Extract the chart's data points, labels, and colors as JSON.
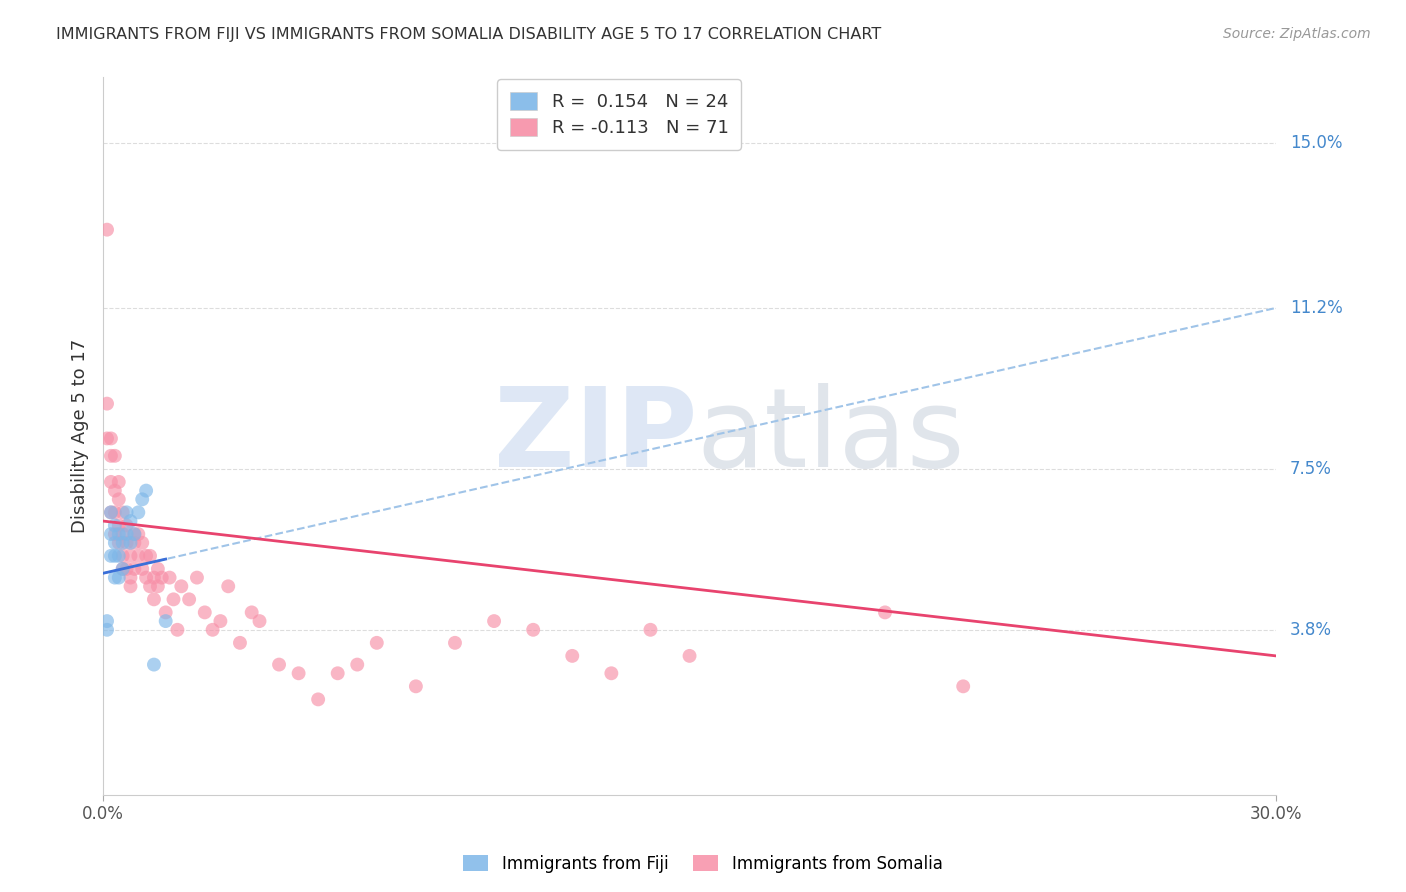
{
  "title": "IMMIGRANTS FROM FIJI VS IMMIGRANTS FROM SOMALIA DISABILITY AGE 5 TO 17 CORRELATION CHART",
  "source": "Source: ZipAtlas.com",
  "ylabel": "Disability Age 5 to 17",
  "xlim": [
    0.0,
    0.3
  ],
  "ylim": [
    0.0,
    0.165
  ],
  "ytick_values": [
    0.038,
    0.075,
    0.112,
    0.15
  ],
  "ytick_labels": [
    "3.8%",
    "7.5%",
    "11.2%",
    "15.0%"
  ],
  "grid_color": "#dddddd",
  "fiji_color": "#7eb7e8",
  "somalia_color": "#f78fa7",
  "fiji_line_color": "#3a6fd8",
  "somalia_line_color": "#e8436e",
  "fiji_dash_color": "#a0c4e8",
  "legend_fiji_label": "R =  0.154   N = 24",
  "legend_somalia_label": "R = -0.113   N = 71",
  "fiji_R": 0.154,
  "fiji_N": 24,
  "somalia_R": -0.113,
  "somalia_N": 71,
  "fiji_x": [
    0.001,
    0.001,
    0.002,
    0.002,
    0.002,
    0.003,
    0.003,
    0.003,
    0.003,
    0.004,
    0.004,
    0.004,
    0.005,
    0.005,
    0.006,
    0.006,
    0.007,
    0.007,
    0.008,
    0.009,
    0.01,
    0.011,
    0.013,
    0.016
  ],
  "fiji_y": [
    0.04,
    0.038,
    0.055,
    0.06,
    0.065,
    0.05,
    0.055,
    0.058,
    0.062,
    0.05,
    0.055,
    0.06,
    0.052,
    0.058,
    0.06,
    0.065,
    0.058,
    0.063,
    0.06,
    0.065,
    0.068,
    0.07,
    0.03,
    0.04
  ],
  "somalia_x": [
    0.001,
    0.001,
    0.001,
    0.002,
    0.002,
    0.002,
    0.002,
    0.003,
    0.003,
    0.003,
    0.003,
    0.004,
    0.004,
    0.004,
    0.004,
    0.005,
    0.005,
    0.005,
    0.005,
    0.006,
    0.006,
    0.006,
    0.007,
    0.007,
    0.007,
    0.008,
    0.008,
    0.008,
    0.009,
    0.009,
    0.01,
    0.01,
    0.011,
    0.011,
    0.012,
    0.012,
    0.013,
    0.013,
    0.014,
    0.014,
    0.015,
    0.016,
    0.017,
    0.018,
    0.019,
    0.02,
    0.022,
    0.024,
    0.026,
    0.028,
    0.03,
    0.032,
    0.035,
    0.038,
    0.04,
    0.045,
    0.05,
    0.055,
    0.06,
    0.065,
    0.07,
    0.08,
    0.09,
    0.1,
    0.11,
    0.12,
    0.13,
    0.14,
    0.15,
    0.2,
    0.22
  ],
  "somalia_y": [
    0.13,
    0.09,
    0.082,
    0.082,
    0.078,
    0.072,
    0.065,
    0.078,
    0.07,
    0.065,
    0.06,
    0.072,
    0.068,
    0.062,
    0.058,
    0.065,
    0.06,
    0.055,
    0.052,
    0.062,
    0.058,
    0.052,
    0.055,
    0.05,
    0.048,
    0.06,
    0.058,
    0.052,
    0.06,
    0.055,
    0.058,
    0.052,
    0.055,
    0.05,
    0.055,
    0.048,
    0.05,
    0.045,
    0.052,
    0.048,
    0.05,
    0.042,
    0.05,
    0.045,
    0.038,
    0.048,
    0.045,
    0.05,
    0.042,
    0.038,
    0.04,
    0.048,
    0.035,
    0.042,
    0.04,
    0.03,
    0.028,
    0.022,
    0.028,
    0.03,
    0.035,
    0.025,
    0.035,
    0.04,
    0.038,
    0.032,
    0.028,
    0.038,
    0.032,
    0.042,
    0.025
  ],
  "fiji_trend_x": [
    0.0,
    0.3
  ],
  "fiji_trend_y_start": 0.051,
  "fiji_trend_y_end": 0.112,
  "somalia_trend_x": [
    0.0,
    0.3
  ],
  "somalia_trend_y_start": 0.063,
  "somalia_trend_y_end": 0.032
}
